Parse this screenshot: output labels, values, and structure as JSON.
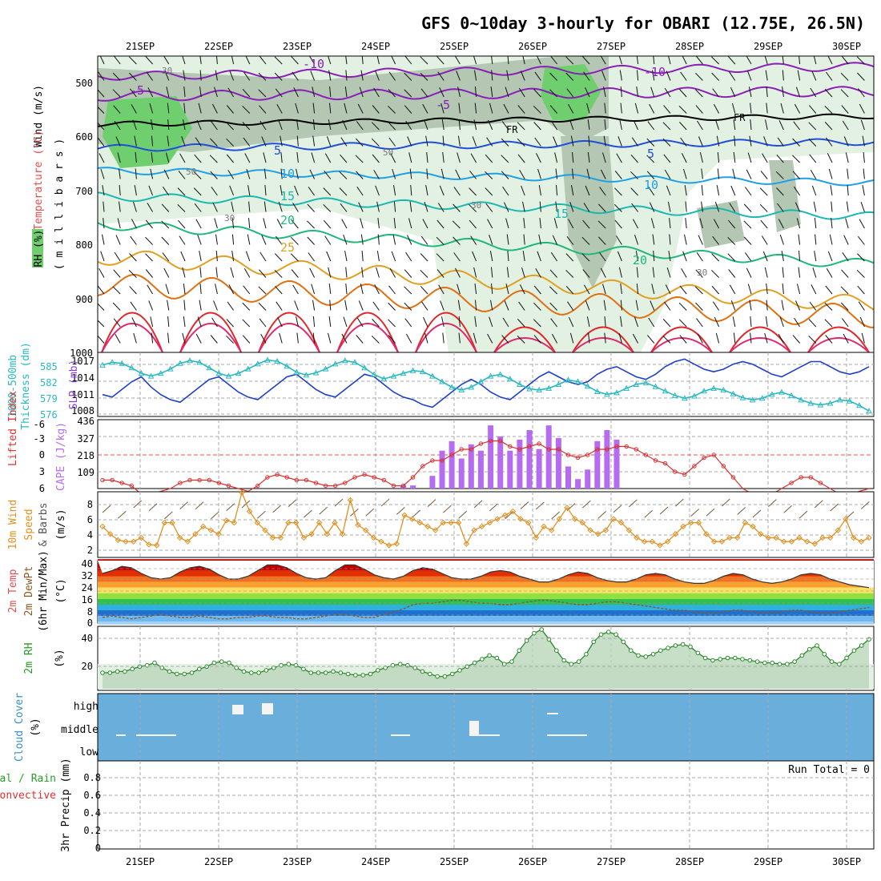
{
  "title": "GFS 0~10day 3-hourly for OBARI (12.75E, 26.5N)",
  "x_axis": {
    "dates": [
      "21SEP",
      "22SEP",
      "23SEP",
      "24SEP",
      "25SEP",
      "26SEP",
      "27SEP",
      "28SEP",
      "29SEP",
      "30SEP"
    ]
  },
  "colors": {
    "purple": "#8a1fb8",
    "blue": "#1f4fd8",
    "light_blue": "#1ea0e6",
    "teal": "#19b8b0",
    "green_teal": "#1fb87a",
    "orange": "#e0a020",
    "dark_orange": "#e07010",
    "red": "#e02828",
    "magenta": "#e0286e",
    "rh_light": "#e3f1e3",
    "rh_mid": "#b3c7b3",
    "rh_green": "#6fcf6f",
    "cloud_bg": "#6aaedb",
    "cape_bar": "#b66cf0",
    "li_line": "#d83030",
    "slp_line": "#1f3fc8",
    "thick_line": "#2ab8c0",
    "wind10": "#e09020",
    "rh2m_line": "#2a8a2a"
  },
  "panels": {
    "upper_air": {
      "labels": [
        "Wind (m/s)",
        "Temperature (°C)",
        "RH (%)",
        "( m i l l i b a r s )"
      ],
      "ytick_labels": [
        "500",
        "600",
        "700",
        "800",
        "900",
        "1000"
      ],
      "contour_labels": [
        "-10",
        "-10",
        "-5",
        "-5",
        "FR",
        "FR",
        "5",
        "5",
        "10",
        "10",
        "15",
        "15",
        "20",
        "20",
        "25",
        "30",
        "30",
        "30",
        "50",
        "50",
        "30"
      ]
    },
    "slp_thickness": {
      "labels": [
        "1000-500mb",
        "Thickness (dm)",
        "SLP (mb)"
      ],
      "left_ticks": [
        "585",
        "582",
        "579",
        "576"
      ],
      "right_ticks": [
        "1017",
        "1014",
        "1011",
        "1008"
      ]
    },
    "cape_li": {
      "labels": [
        "Lifted Index",
        "CAPE (J/kg)"
      ],
      "left_ticks": [
        "-6",
        "-3",
        "0",
        "3",
        "6"
      ],
      "right_ticks": [
        "436",
        "327",
        "218",
        "109"
      ]
    },
    "wind10m": {
      "labels": [
        "10m Wind",
        "Speed",
        "& Barbs",
        "(m/s)"
      ],
      "ticks": [
        "8",
        "6",
        "4",
        "2"
      ]
    },
    "temp2m": {
      "labels": [
        "2m Temp",
        "2m DewPt",
        "(6hr Min/Max)",
        "(°C)"
      ],
      "ticks": [
        "40",
        "32",
        "24",
        "16",
        "8",
        "0"
      ]
    },
    "rh2m": {
      "labels": [
        "2m RH",
        "(%)"
      ],
      "ticks": [
        "40",
        "20"
      ]
    },
    "cloud": {
      "labels": [
        "Cloud Cover",
        "(%)"
      ],
      "level_labels": [
        "high",
        "middle",
        "low"
      ]
    },
    "precip": {
      "labels": [
        "Total / Rain",
        "Convective",
        "3hr Precip (mm)"
      ],
      "ticks": [
        "0.8",
        "0.6",
        "0.4",
        "0.2",
        "0"
      ],
      "run_total": "Run Total = 0"
    }
  },
  "chart_data": [
    {
      "type": "line",
      "title": "SLP (mb) and 1000-500mb Thickness (dm)",
      "x_step_hours": 3,
      "series": [
        {
          "name": "SLP (mb)",
          "axis": "right",
          "ylim": [
            1006,
            1018
          ],
          "values": [
            1010,
            1009.5,
            1011,
            1012.5,
            1013.5,
            1011.5,
            1010,
            1009,
            1008.5,
            1010,
            1011.5,
            1013,
            1013.5,
            1012,
            1010.5,
            1009.5,
            1009,
            1010.5,
            1012,
            1013.5,
            1014,
            1012.5,
            1011,
            1010,
            1009.5,
            1011,
            1012.5,
            1014,
            1013.5,
            1012,
            1010.5,
            1009.5,
            1009,
            1008,
            1007.5,
            1009,
            1010.5,
            1012,
            1013,
            1012,
            1010.5,
            1009.5,
            1009,
            1010.5,
            1012,
            1013.5,
            1014.5,
            1013.5,
            1012.5,
            1012,
            1012.5,
            1014,
            1015,
            1015.5,
            1014.5,
            1013.5,
            1013,
            1014,
            1015.5,
            1016.5,
            1017,
            1016,
            1015,
            1014.5,
            1015,
            1016,
            1016.5,
            1016,
            1015,
            1014,
            1013.5,
            1014.5,
            1015.5,
            1016.5,
            1016.5,
            1015.5,
            1014.5,
            1014,
            1014.5,
            1015.5
          ]
        },
        {
          "name": "1000-500mb Thickness (dm)",
          "axis": "left",
          "ylim": [
            575.5,
            586.5
          ],
          "values": [
            584.5,
            585,
            584.8,
            584,
            583,
            582.5,
            583,
            583.8,
            584.8,
            585.3,
            585,
            584,
            583,
            582.5,
            583,
            583.8,
            584.7,
            585.4,
            585.2,
            584.3,
            583.2,
            582.7,
            583.1,
            583.8,
            584.7,
            585.3,
            585,
            584,
            582.8,
            582,
            582.5,
            583,
            583.5,
            583.3,
            582.5,
            581.5,
            580.5,
            580,
            580.5,
            581.5,
            582.5,
            582.8,
            582,
            581,
            580.2,
            580,
            580.3,
            581,
            581.8,
            581.5,
            580.7,
            579.7,
            579.2,
            579.5,
            580.3,
            581,
            581.3,
            580.6,
            579.8,
            579,
            578.5,
            578.9,
            579.8,
            580.3,
            580,
            579.3,
            578.6,
            578.2,
            578.5,
            579.2,
            579.6,
            579,
            578.2,
            577.6,
            577.3,
            577.6,
            578.2,
            578,
            577.2,
            576.2
          ]
        }
      ]
    },
    {
      "type": "bar",
      "title": "CAPE (J/kg) and Lifted Index",
      "x_step_hours": 3,
      "cape_values": [
        0,
        0,
        0,
        0,
        0,
        0,
        0,
        0,
        0,
        0,
        0,
        0,
        0,
        0,
        0,
        0,
        0,
        0,
        0,
        0,
        0,
        0,
        0,
        0,
        0,
        0,
        0,
        0,
        0,
        0,
        0,
        20,
        20,
        0,
        80,
        240,
        300,
        190,
        280,
        240,
        400,
        330,
        240,
        310,
        370,
        250,
        400,
        320,
        140,
        60,
        120,
        300,
        370,
        310,
        0,
        0,
        0,
        0,
        0,
        0,
        0,
        0,
        0,
        0,
        0,
        0,
        0,
        0,
        0,
        0,
        0,
        0,
        0,
        0,
        0,
        0,
        0,
        0,
        0,
        0
      ],
      "lifted_index": [
        4.5,
        4.5,
        5,
        5.5,
        7,
        7,
        6.5,
        6,
        5,
        4.5,
        4.5,
        4.5,
        5,
        5.5,
        6,
        6.5,
        5.5,
        4,
        3.5,
        4,
        4.5,
        4.5,
        5,
        5.5,
        5.5,
        5,
        4,
        3.5,
        4,
        4.5,
        5.5,
        5.5,
        4,
        2,
        1,
        1,
        0,
        -1,
        -1,
        -2,
        -2.5,
        -2.5,
        -1.5,
        -1,
        -1.5,
        -2,
        -1,
        -1,
        0,
        0.5,
        0,
        -1,
        -1,
        -1.5,
        -1.5,
        -1,
        0,
        1,
        1.5,
        3,
        3.5,
        2,
        0.5,
        0,
        2,
        4,
        6,
        7,
        7,
        7,
        6,
        5,
        4,
        4,
        5,
        6,
        7,
        7,
        6.5,
        6
      ],
      "cape_ylim": [
        0,
        436
      ],
      "li_ylim": [
        -6,
        6
      ]
    },
    {
      "type": "line",
      "title": "10m Wind Speed (m/s)",
      "x_step_hours": 3,
      "values": [
        5,
        4,
        3.2,
        3,
        3,
        3.5,
        2.6,
        2.5,
        5.5,
        5.5,
        3.5,
        3,
        4,
        5,
        4.5,
        4,
        5.8,
        5.5,
        9.5,
        7,
        5.5,
        4.5,
        3.5,
        3.5,
        5.5,
        5.5,
        3.5,
        4,
        5.5,
        4,
        5.5,
        4,
        8.5,
        5.2,
        4.5,
        3.5,
        3,
        2.5,
        2.7,
        6.5,
        6,
        5.5,
        5,
        4.5,
        5.5,
        5.5,
        5.5,
        2.7,
        4.5,
        5,
        5.5,
        6,
        6.5,
        7,
        6,
        5.5,
        3.5,
        5,
        4.5,
        6,
        7.5,
        6,
        5.5,
        4.5,
        4,
        4.5,
        6,
        5.5,
        4.5,
        3.5,
        3,
        3,
        2.5,
        3,
        4,
        5,
        5.5,
        5.5,
        4,
        3,
        3,
        3.5,
        3.5,
        5.5,
        5,
        4,
        3.5,
        3.5,
        3,
        3,
        3.5,
        3,
        2.7,
        3.5,
        3.5,
        4.5,
        6,
        3.5,
        3,
        3.5
      ],
      "ylim": [
        1,
        9.5
      ]
    },
    {
      "type": "area",
      "title": "2m Temp / 2m DewPt (°C)",
      "x_step_hours": 3,
      "temp": [
        34,
        36,
        39,
        38,
        34,
        31,
        30,
        31,
        35,
        38,
        39,
        37,
        33,
        30,
        30,
        32,
        36,
        40,
        40,
        38,
        34,
        31,
        30,
        31,
        36,
        40,
        40,
        37,
        33,
        31,
        30,
        32,
        36,
        38,
        37,
        34,
        31,
        30,
        30,
        32,
        35,
        36,
        35,
        32,
        30,
        28,
        28,
        30,
        33,
        35,
        34,
        31,
        29,
        28,
        28,
        30,
        33,
        34,
        33,
        30,
        28,
        27,
        27,
        29,
        32,
        34,
        33,
        30,
        28,
        27,
        28,
        30,
        33,
        34,
        33,
        30,
        28,
        26,
        25,
        24
      ],
      "dewpoint": [
        3,
        4,
        3,
        2,
        3,
        4,
        5,
        4,
        3,
        3,
        4,
        3,
        2,
        2,
        3,
        3,
        4,
        4,
        3,
        3,
        2,
        2,
        3,
        4,
        5,
        5,
        4,
        3,
        3,
        5,
        7,
        9,
        12,
        13,
        13,
        14,
        15,
        15,
        14,
        13,
        13,
        12,
        12,
        13,
        14,
        15,
        15,
        14,
        13,
        12,
        12,
        13,
        14,
        14,
        13,
        12,
        11,
        10,
        9,
        8,
        8,
        7,
        6,
        6,
        7,
        8,
        8,
        7,
        6,
        6,
        7,
        8,
        8,
        7,
        6,
        6,
        7,
        8,
        9,
        10
      ],
      "ylim": [
        -1,
        43
      ]
    },
    {
      "type": "area",
      "title": "2m RH (%)",
      "x_step_hours": 3,
      "values": [
        13,
        13,
        14,
        14,
        16,
        18,
        19,
        21,
        17,
        14,
        12,
        12,
        13,
        16,
        18,
        21,
        22,
        21,
        17,
        14,
        13,
        13,
        15,
        17,
        19,
        20,
        19,
        16,
        13,
        13,
        13,
        14,
        13,
        12,
        11,
        11,
        12,
        15,
        17,
        19,
        20,
        19,
        17,
        14,
        12,
        10,
        10,
        12,
        15,
        18,
        21,
        24,
        27,
        25,
        20,
        22,
        31,
        39,
        45,
        48,
        40,
        31,
        23,
        20,
        22,
        28,
        38,
        44,
        46,
        44,
        38,
        31,
        27,
        26,
        28,
        31,
        33,
        35,
        36,
        34,
        29,
        25,
        23,
        24,
        25,
        25,
        24,
        23,
        22,
        21,
        21,
        20,
        20,
        22,
        27,
        32,
        35,
        28,
        22,
        20,
        25,
        31,
        35,
        40
      ],
      "ylim": [
        0,
        48
      ]
    },
    {
      "type": "bar",
      "title": "Cloud Cover (%)",
      "levels": [
        "high",
        "middle",
        "low"
      ],
      "note": "Mostly clear; brief high cloud near 22SEP and isolated middle/low cloud near 25SEP and 26SEP"
    },
    {
      "type": "bar",
      "title": "3hr Precip (mm)",
      "values": [],
      "ylim": [
        0,
        1
      ]
    }
  ]
}
